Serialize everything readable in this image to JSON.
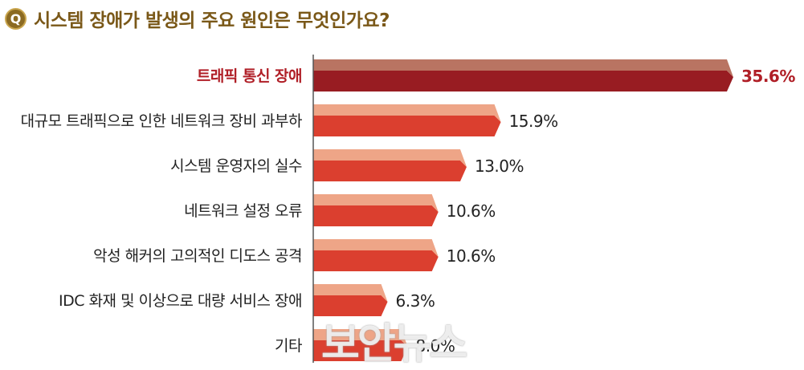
{
  "header": {
    "badge": "Q",
    "title": "시스템 장애가 발생의 주요 원인은 무엇인가요?"
  },
  "watermark": "보안뉴스",
  "colors": {
    "highlight_bar": "#981c22",
    "highlight_bar_top": "#b97462",
    "normal_bar": "#db3f2f",
    "normal_bar_top": "#eea587",
    "highlight_text": "#b01f27",
    "text": "#222222",
    "axis": "#555555"
  },
  "chart_data": {
    "type": "bar",
    "orientation": "horizontal",
    "title": "시스템 장애가 발생의 주요 원인은 무엇인가요?",
    "categories": [
      "트래픽 통신 장애",
      "대규모 트래픽으로 인한 네트워크 장비 과부하",
      "시스템 운영자의 실수",
      "네트워크 설정 오류",
      "악성 해커의 고의적인 디도스 공격",
      "IDC 화재 및 이상으로 대량 서비스 장애",
      "기타"
    ],
    "values": [
      35.6,
      15.9,
      13.0,
      10.6,
      10.6,
      6.3,
      8.0
    ],
    "value_labels": [
      "35.6%",
      "15.9%",
      "13.0%",
      "10.6%",
      "10.6%",
      "6.3%",
      "8.0%"
    ],
    "highlight_index": 0,
    "xlim": [
      0,
      35.6
    ],
    "grid": false,
    "legend": "none"
  }
}
